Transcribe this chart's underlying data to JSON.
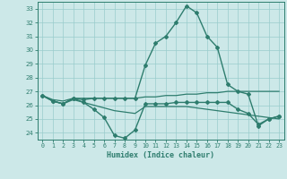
{
  "xlabel": "Humidex (Indice chaleur)",
  "bg_color": "#cce8e8",
  "grid_color": "#99cccc",
  "line_color": "#2e7d6e",
  "xlim": [
    -0.5,
    23.5
  ],
  "ylim": [
    23.5,
    33.5
  ],
  "yticks": [
    24,
    25,
    26,
    27,
    28,
    29,
    30,
    31,
    32,
    33
  ],
  "xticks": [
    0,
    1,
    2,
    3,
    4,
    5,
    6,
    7,
    8,
    9,
    10,
    11,
    12,
    13,
    14,
    15,
    16,
    17,
    18,
    19,
    20,
    21,
    22,
    23
  ],
  "lines": [
    {
      "x": [
        0,
        1,
        2,
        3,
        4,
        5,
        6,
        7,
        8,
        9,
        10,
        11,
        12,
        13,
        14,
        15,
        16,
        17,
        18,
        19,
        20,
        21,
        22,
        23
      ],
      "y": [
        26.7,
        26.3,
        26.1,
        26.5,
        26.2,
        25.7,
        25.1,
        23.8,
        23.6,
        24.2,
        26.1,
        26.1,
        26.1,
        26.2,
        26.2,
        26.2,
        26.2,
        26.2,
        26.2,
        25.7,
        25.4,
        24.6,
        25.0,
        25.2
      ],
      "marker": "D",
      "markersize": 2.0,
      "linewidth": 1.0
    },
    {
      "x": [
        0,
        1,
        2,
        3,
        4,
        5,
        6,
        7,
        8,
        9,
        10,
        11,
        12,
        13,
        14,
        15,
        16,
        17,
        18,
        19,
        20,
        21,
        22,
        23
      ],
      "y": [
        26.7,
        26.4,
        26.3,
        26.5,
        26.5,
        26.5,
        26.5,
        26.5,
        26.5,
        26.5,
        26.6,
        26.6,
        26.7,
        26.7,
        26.8,
        26.8,
        26.9,
        26.9,
        27.0,
        27.0,
        27.0,
        27.0,
        27.0,
        27.0
      ],
      "marker": null,
      "markersize": 0,
      "linewidth": 0.9
    },
    {
      "x": [
        0,
        1,
        2,
        3,
        4,
        5,
        6,
        7,
        8,
        9,
        10,
        11,
        12,
        13,
        14,
        15,
        16,
        17,
        18,
        19,
        20,
        21,
        22,
        23
      ],
      "y": [
        26.7,
        26.3,
        26.1,
        26.4,
        26.2,
        26.0,
        25.8,
        25.6,
        25.5,
        25.4,
        25.9,
        25.9,
        25.9,
        25.9,
        25.9,
        25.8,
        25.7,
        25.6,
        25.5,
        25.4,
        25.3,
        25.2,
        25.1,
        25.0
      ],
      "marker": null,
      "markersize": 0,
      "linewidth": 0.9
    },
    {
      "x": [
        0,
        1,
        2,
        3,
        4,
        5,
        6,
        7,
        8,
        9,
        10,
        11,
        12,
        13,
        14,
        15,
        16,
        17,
        18,
        19,
        20,
        21,
        22,
        23
      ],
      "y": [
        26.7,
        26.3,
        26.1,
        26.5,
        26.4,
        26.5,
        26.5,
        26.5,
        26.5,
        26.5,
        28.9,
        30.5,
        31.0,
        32.0,
        33.2,
        32.7,
        31.0,
        30.2,
        27.5,
        27.0,
        26.8,
        24.5,
        25.0,
        25.2
      ],
      "marker": "D",
      "markersize": 2.0,
      "linewidth": 1.0
    }
  ]
}
